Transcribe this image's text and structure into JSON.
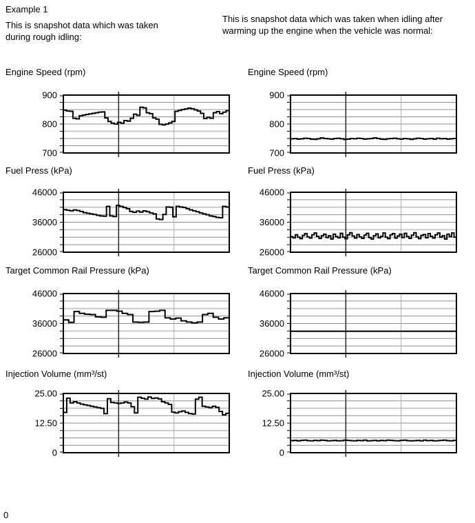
{
  "page": {
    "example_label": "Example 1",
    "left_intro": "This is snapshot data which was taken\nduring rough idling:",
    "right_intro": "This is snapshot data which was taken when idling after\nwarming up the engine when the vehicle was normal:",
    "footer_label": "0"
  },
  "colors": {
    "trace": "#000000",
    "grid_minor": "#8f8f8f",
    "grid_major": "#c9c9c9",
    "cursor_line": "#222222",
    "secondary_vline": "#aaaaaa",
    "border": "#000000"
  },
  "chart_data": [
    {
      "id": "engine-speed-rough",
      "type": "line",
      "interpolation": "step",
      "row": 1,
      "column": "left",
      "title": "Engine Speed (rpm)",
      "ylabel": "rpm",
      "ylim": [
        700,
        900
      ],
      "ytick_labels": [
        "900",
        "800",
        "700"
      ],
      "grid_divisions": 8,
      "legend": "none",
      "values": [
        848,
        845,
        844,
        820,
        818,
        829,
        831,
        833,
        835,
        837,
        839,
        841,
        842,
        821,
        809,
        803,
        800,
        806,
        803,
        812,
        810,
        820,
        834,
        830,
        858,
        856,
        839,
        836,
        821,
        817,
        799,
        797,
        800,
        804,
        809,
        844,
        847,
        850,
        852,
        855,
        853,
        849,
        845,
        837,
        819,
        823,
        820,
        839,
        843,
        836,
        841,
        846
      ]
    },
    {
      "id": "engine-speed-normal",
      "type": "line",
      "interpolation": "step",
      "row": 1,
      "column": "right",
      "title": "Engine Speed (rpm)",
      "ylabel": "rpm",
      "ylim": [
        700,
        900
      ],
      "ytick_labels": [
        "900",
        "800",
        "700"
      ],
      "grid_divisions": 8,
      "legend": "none",
      "values": [
        749,
        750,
        748,
        749,
        751,
        750,
        748,
        747,
        749,
        752,
        750,
        749,
        748,
        750,
        751,
        749,
        747,
        748,
        750,
        749,
        751,
        750,
        748,
        749,
        750,
        752,
        750,
        748,
        747,
        749,
        750,
        751,
        749,
        748,
        750,
        749,
        747,
        749,
        751,
        750,
        748,
        749,
        750,
        748,
        751,
        749,
        750,
        748,
        749,
        750
      ]
    },
    {
      "id": "fuel-press-rough",
      "type": "line",
      "interpolation": "step",
      "row": 2,
      "column": "left",
      "title": "Fuel Press (kPa)",
      "ylabel": "kPa",
      "ylim": [
        26000,
        46000
      ],
      "ytick_labels": [
        "46000",
        "36000",
        "26000"
      ],
      "grid_divisions": 8,
      "legend": "none",
      "values": [
        40200,
        40000,
        39800,
        40100,
        39900,
        39600,
        39200,
        39000,
        38800,
        38600,
        38300,
        38100,
        38000,
        41300,
        38100,
        37900,
        41600,
        41300,
        40900,
        40500,
        39600,
        39300,
        39700,
        39400,
        39800,
        39500,
        39100,
        38800,
        37100,
        36900,
        38600,
        41100,
        41000,
        37800,
        41300,
        41100,
        40900,
        40500,
        40100,
        39800,
        39500,
        39100,
        38800,
        38500,
        38100,
        37900,
        37600,
        37500,
        41300,
        41100
      ]
    },
    {
      "id": "fuel-press-normal",
      "type": "line",
      "interpolation": "step",
      "row": 2,
      "column": "right",
      "title": "Fuel Press (kPa)",
      "ylabel": "kPa",
      "ylim": [
        26000,
        46000
      ],
      "ytick_labels": [
        "46000",
        "36000",
        "26000"
      ],
      "grid_divisions": 8,
      "legend": "none",
      "values": [
        31200,
        30800,
        31800,
        31000,
        30500,
        31600,
        32200,
        31100,
        30700,
        31800,
        32400,
        31300,
        30600,
        31500,
        32000,
        30900,
        31500,
        30400,
        32000,
        31200,
        30800,
        32300,
        31000,
        30500,
        31800,
        32500,
        31400,
        30700,
        31900,
        31100,
        30600,
        31700,
        32300,
        30900,
        30400,
        31500,
        32100,
        30800,
        31300,
        32400,
        31000,
        30500,
        31800,
        32200,
        30700,
        31400,
        32000,
        30900,
        32300,
        31200,
        30600,
        31700,
        32500,
        31100,
        30500,
        31600,
        31900,
        30800,
        32200,
        31300,
        30700,
        31800,
        32400,
        31000,
        31500,
        30400,
        32000,
        31200,
        32400,
        31000
      ]
    },
    {
      "id": "target-rail-pressure-rough",
      "type": "line",
      "interpolation": "step",
      "row": 3,
      "column": "left",
      "title": "Target Common Rail Pressure (kPa)",
      "ylabel": "kPa",
      "ylim": [
        26000,
        46000
      ],
      "ytick_labels": [
        "46000",
        "36000",
        "26000"
      ],
      "grid_divisions": 8,
      "legend": "none",
      "values": [
        37200,
        36400,
        40000,
        39400,
        39100,
        39000,
        38200,
        38100,
        40400,
        40400,
        40100,
        39400,
        39000,
        36500,
        36400,
        36500,
        40000,
        40100,
        40400,
        37900,
        37500,
        37800,
        36900,
        36500,
        36200,
        36500,
        39000,
        39400,
        38100,
        37500,
        37900
      ]
    },
    {
      "id": "target-rail-pressure-normal",
      "type": "line",
      "interpolation": "step",
      "row": 3,
      "column": "right",
      "title": "Target Common Rail Pressure (kPa)",
      "ylabel": "kPa",
      "ylim": [
        26000,
        46000
      ],
      "ytick_labels": [
        "46000",
        "36000",
        "26000"
      ],
      "grid_divisions": 8,
      "legend": "none",
      "values": [
        33400,
        33400,
        33400,
        33400
      ]
    },
    {
      "id": "injection-volume-rough",
      "type": "line",
      "interpolation": "step",
      "row": 4,
      "column": "left",
      "title": "Injection Volume (mm³/st)",
      "ylabel": "mm³/st",
      "ylim": [
        0,
        25
      ],
      "ytick_labels": [
        "25.00",
        "12.50",
        "0"
      ],
      "grid_divisions": 8,
      "legend": "none",
      "values": [
        17.0,
        23.0,
        21.0,
        21.5,
        21.0,
        20.5,
        20.2,
        19.9,
        19.6,
        19.3,
        19.0,
        18.7,
        16.5,
        22.8,
        21.2,
        21.0,
        20.8,
        21.0,
        21.4,
        21.0,
        19.4,
        16.8,
        23.4,
        23.0,
        22.6,
        23.5,
        22.9,
        23.1,
        22.7,
        21.5,
        21.0,
        20.4,
        17.1,
        16.8,
        17.3,
        17.6,
        17.0,
        16.5,
        16.3,
        22.6,
        23.4,
        19.6,
        19.3,
        19.0,
        19.6,
        19.1,
        17.4,
        16.0,
        16.6
      ]
    },
    {
      "id": "injection-volume-normal",
      "type": "line",
      "interpolation": "step",
      "row": 4,
      "column": "right",
      "title": "Injection Volume (mm³/st)",
      "ylabel": "mm³/st",
      "ylim": [
        0,
        25
      ],
      "ytick_labels": [
        "25.00",
        "12.50",
        "0"
      ],
      "grid_divisions": 8,
      "legend": "none",
      "values": [
        5.1,
        5.2,
        5.0,
        5.2,
        5.3,
        5.1,
        5.0,
        5.2,
        5.1,
        5.3,
        5.2,
        5.0,
        5.1,
        5.2,
        5.0,
        5.1,
        5.3,
        5.2,
        5.1,
        5.0,
        5.2,
        5.1,
        5.3,
        5.0,
        5.1,
        5.2,
        5.0,
        5.2,
        5.1,
        5.3,
        5.2,
        5.1,
        5.0,
        5.2,
        5.3,
        5.1,
        5.0,
        5.1,
        5.2,
        5.0,
        5.3,
        5.1,
        5.2,
        5.0,
        5.1,
        5.2,
        5.3,
        5.1,
        5.0,
        5.2
      ]
    }
  ]
}
